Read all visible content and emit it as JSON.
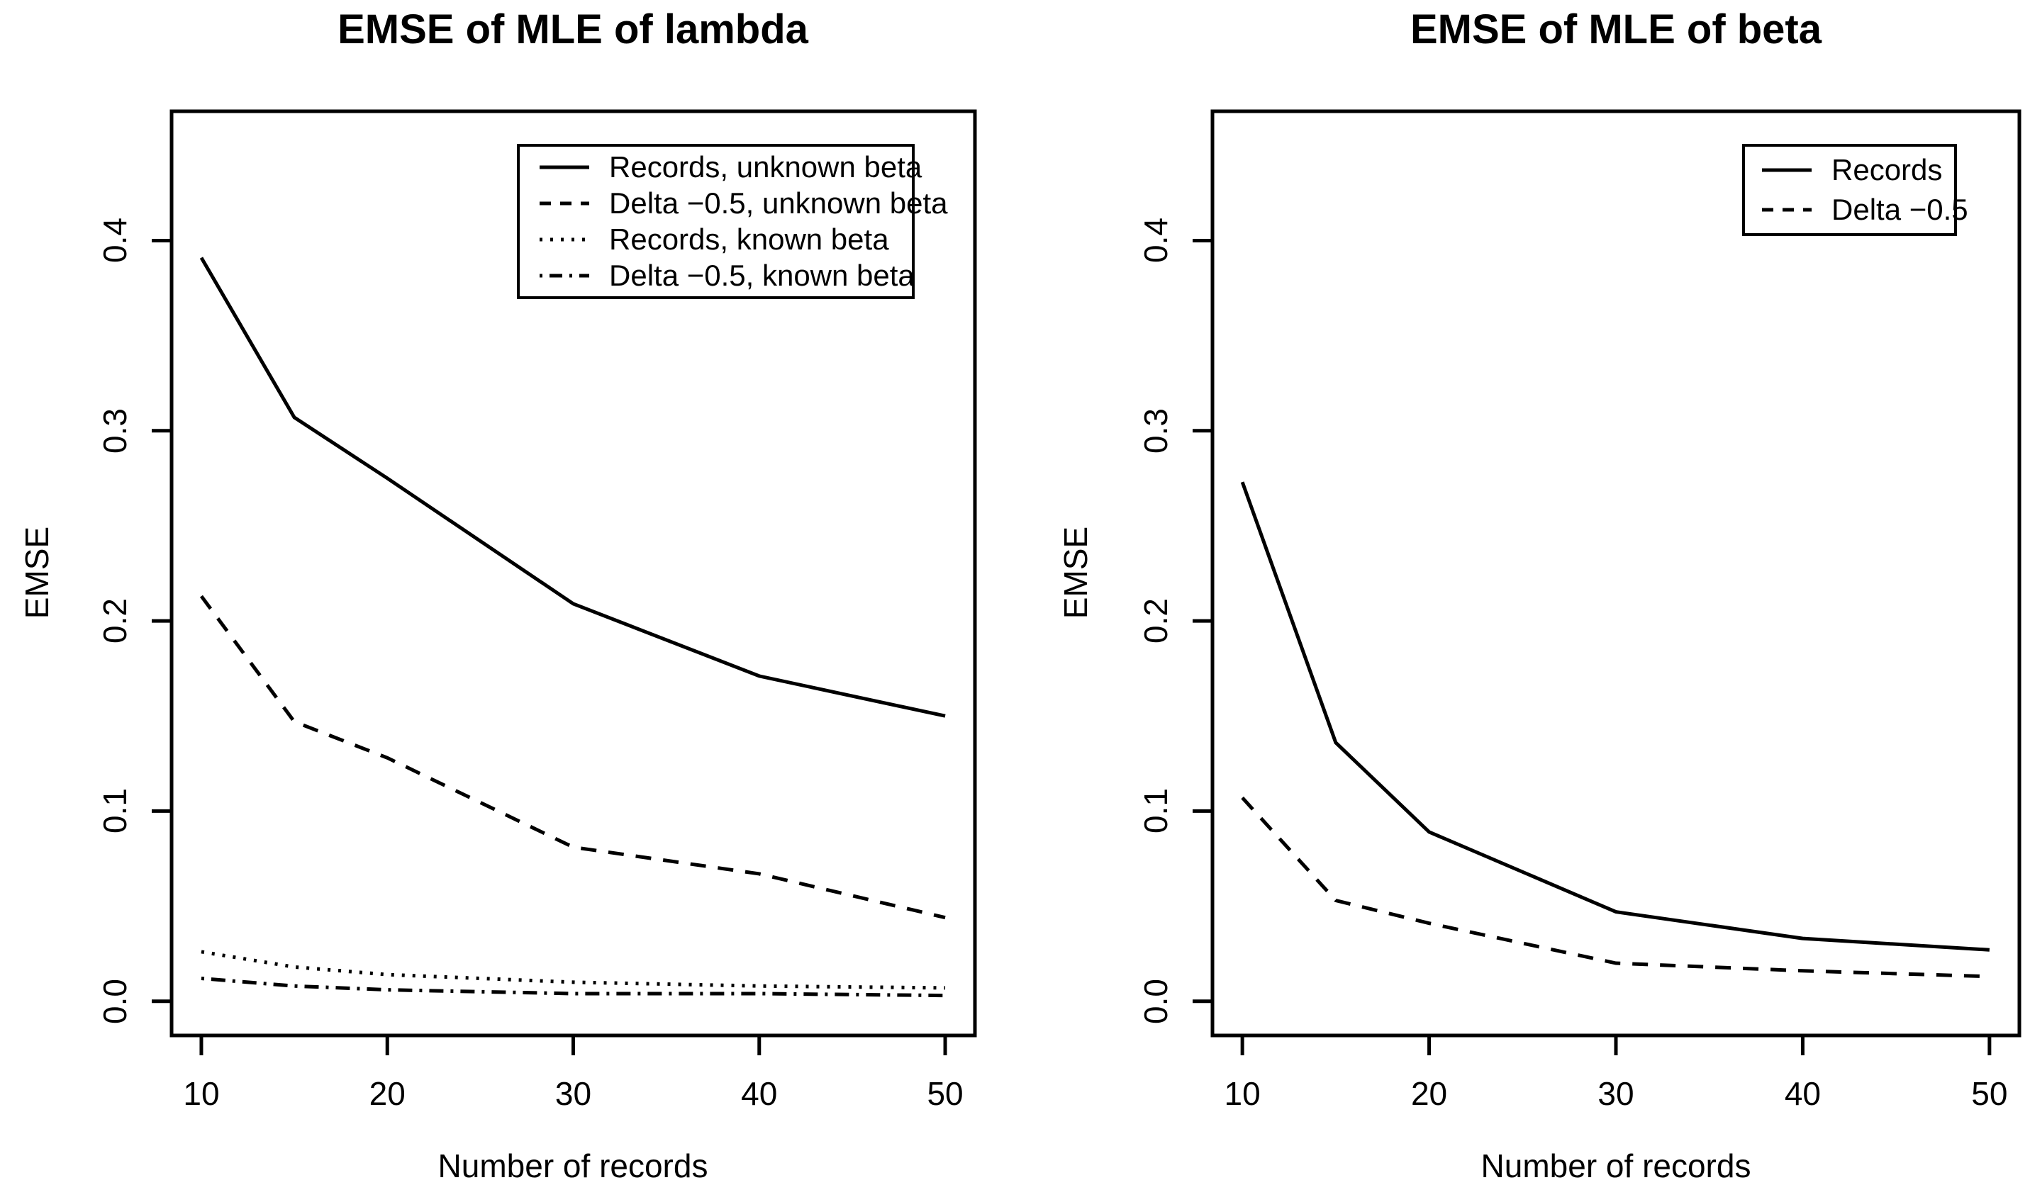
{
  "figure": {
    "background_color": "#ffffff",
    "foreground_color": "#000000",
    "description": "Two side-by-side R-style line plots comparing estimation error versus sample size"
  },
  "chart_data": [
    {
      "type": "line",
      "title": "EMSE of MLE of lambda",
      "xlabel": "Number of records",
      "ylabel": "EMSE",
      "xlim": [
        10,
        50
      ],
      "ylim": [
        0,
        0.45
      ],
      "x_ticks": [
        "10",
        "20",
        "30",
        "40",
        "50"
      ],
      "y_ticks": [
        "0.0",
        "0.1",
        "0.2",
        "0.3",
        "0.4"
      ],
      "grid": "off",
      "legend_position": "inside top-right",
      "x": [
        10,
        15,
        20,
        30,
        40,
        50
      ],
      "series": [
        {
          "name": "Records, unknown beta",
          "style": "solid",
          "values": [
            0.391,
            0.307,
            0.275,
            0.209,
            0.171,
            0.15
          ]
        },
        {
          "name": "Delta −0.5, unknown beta",
          "style": "dashed",
          "values": [
            0.213,
            0.147,
            0.128,
            0.081,
            0.067,
            0.044
          ]
        },
        {
          "name": "Records, known beta",
          "style": "dotted",
          "values": [
            0.026,
            0.018,
            0.014,
            0.01,
            0.008,
            0.007
          ]
        },
        {
          "name": "Delta −0.5, known beta",
          "style": "dashdot",
          "values": [
            0.012,
            0.008,
            0.006,
            0.004,
            0.004,
            0.003
          ]
        }
      ]
    },
    {
      "type": "line",
      "title": "EMSE of MLE of beta",
      "xlabel": "Number of records",
      "ylabel": "EMSE",
      "xlim": [
        10,
        50
      ],
      "ylim": [
        0,
        0.45
      ],
      "x_ticks": [
        "10",
        "20",
        "30",
        "40",
        "50"
      ],
      "y_ticks": [
        "0.0",
        "0.1",
        "0.2",
        "0.3",
        "0.4"
      ],
      "grid": "off",
      "legend_position": "inside top-right",
      "x": [
        10,
        15,
        20,
        30,
        40,
        50
      ],
      "series": [
        {
          "name": "Records",
          "style": "solid",
          "values": [
            0.273,
            0.136,
            0.089,
            0.047,
            0.033,
            0.027
          ]
        },
        {
          "name": "Delta −0.5",
          "style": "dashed",
          "values": [
            0.107,
            0.053,
            0.041,
            0.02,
            0.016,
            0.013
          ]
        }
      ]
    }
  ]
}
